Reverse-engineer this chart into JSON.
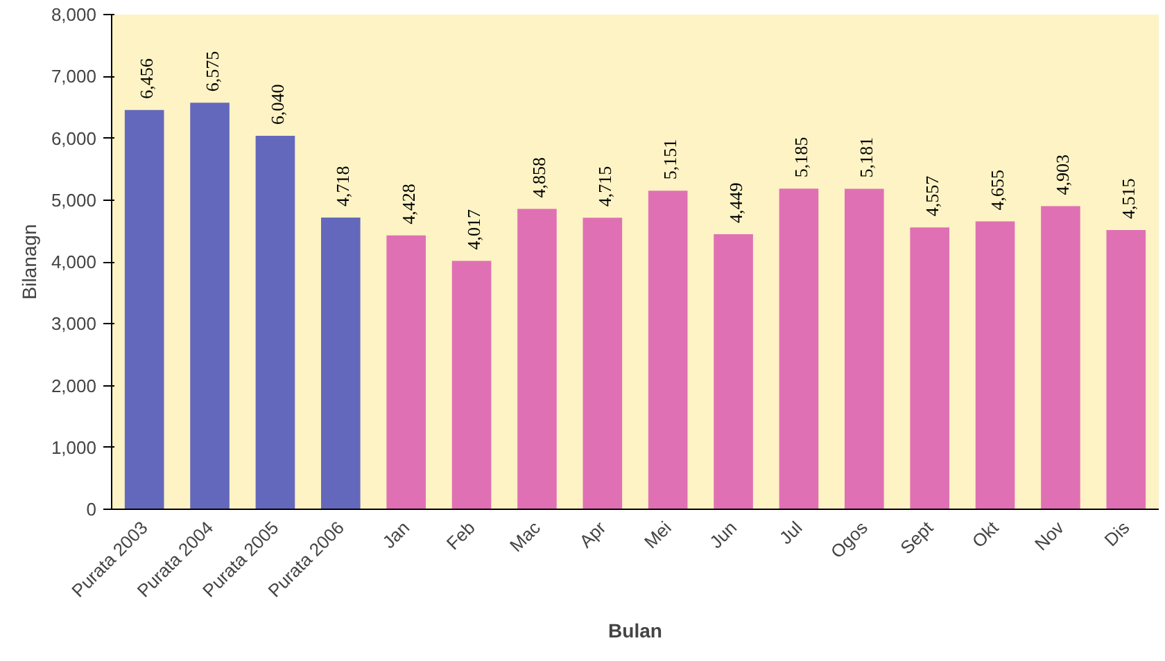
{
  "chart_data": {
    "type": "bar",
    "xlabel": "Bulan",
    "ylabel": "Bilanagn",
    "categories": [
      "Purata 2003",
      "Purata 2004",
      "Purata 2005",
      "Purata 2006",
      "Jan",
      "Feb",
      "Mac",
      "Apr",
      "Mei",
      "Jun",
      "Jul",
      "Ogos",
      "Sept",
      "Okt",
      "Nov",
      "Dis"
    ],
    "values": [
      6456,
      6575,
      6040,
      4718,
      4428,
      4017,
      4858,
      4715,
      5151,
      4449,
      5185,
      5181,
      4557,
      4655,
      4903,
      4515
    ],
    "value_labels": [
      "6,456",
      "6,575",
      "6,040",
      "4,718",
      "4,428",
      "4,017",
      "4,858",
      "4,715",
      "5,151",
      "4,449",
      "5,185",
      "5,181",
      "4,557",
      "4,655",
      "4,903",
      "4,515"
    ],
    "colors": [
      "#6468bc",
      "#6468bc",
      "#6468bc",
      "#6468bc",
      "#e070b4",
      "#e070b4",
      "#e070b4",
      "#e070b4",
      "#e070b4",
      "#e070b4",
      "#e070b4",
      "#e070b4",
      "#e070b4",
      "#e070b4",
      "#e070b4",
      "#e070b4"
    ],
    "ylim": [
      0,
      8000
    ],
    "yticks": [
      0,
      {
        "value": 1000,
        "label": "1,000"
      },
      {
        "value": 2000,
        "label": "2,000"
      },
      {
        "value": 3000,
        "label": "3,000"
      },
      {
        "value": 4000,
        "label": "4,000"
      },
      {
        "value": 5000,
        "label": "5,000"
      },
      {
        "value": 6000,
        "label": "6,000"
      },
      {
        "value": 7000,
        "label": "7,000"
      },
      {
        "value": 8000,
        "label": "8,000"
      }
    ],
    "grid": false
  }
}
